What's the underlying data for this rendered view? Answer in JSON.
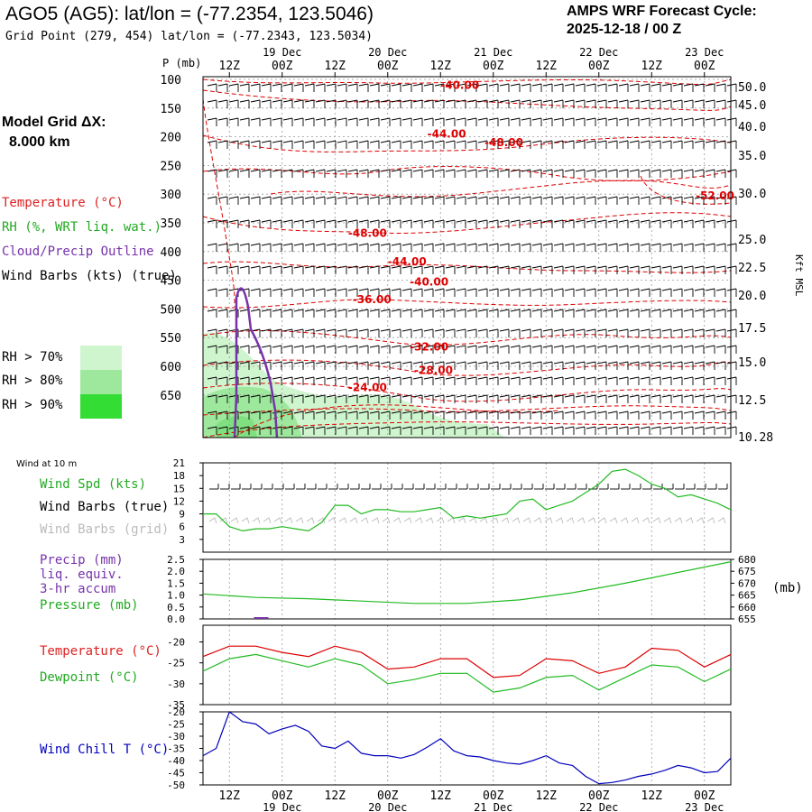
{
  "header": {
    "title": "AGO5 (AG5):  lat/lon = (-77.2354, 123.5046)",
    "subtitle": "Grid Point (279, 454) lat/lon = (-77.2343, 123.5034)",
    "forecast_label": "AMPS WRF Forecast Cycle:",
    "forecast_cycle": "2025-12-18 / 00  Z"
  },
  "sidebar": {
    "model_grid_label": "Model Grid ΔX:",
    "model_grid_value": "8.000 km",
    "legend": {
      "temperature": "Temperature (°C)",
      "rh": "RH (%, WRT liq. wat.)",
      "cloud": "Cloud/Precip Outline",
      "wind": "Wind Barbs (kts) (true)"
    },
    "rh_bins": [
      {
        "label": "RH > 70%",
        "color": "#cff5cf"
      },
      {
        "label": "RH > 80%",
        "color": "#9de89d"
      },
      {
        "label": "RH > 90%",
        "color": "#33dd33"
      }
    ]
  },
  "colors": {
    "temperature": "#dd0000",
    "rh_dewpoint": "#22bb22",
    "cloud": "#7733aa",
    "wind_barbs_grid": "#bbbbbb",
    "wind_chill": "#0000bb",
    "grid": "#999999"
  },
  "time_axis": {
    "top_labels": [
      "12Z",
      "00Z",
      "12Z",
      "00Z",
      "12Z",
      "00Z",
      "12Z",
      "00Z",
      "12Z",
      "00Z"
    ],
    "date_labels": [
      "19 Dec",
      "20 Dec",
      "21 Dec",
      "22 Dec",
      "23 Dec"
    ],
    "bottom_labels": [
      "12Z",
      "00Z",
      "12Z",
      "00Z",
      "12Z",
      "00Z",
      "12Z",
      "00Z",
      "12Z",
      "00Z"
    ],
    "bottom_dates": [
      "19 Dec",
      "20 Dec",
      "21 Dec",
      "22 Dec",
      "23 Dec"
    ]
  },
  "chart_data": [
    {
      "type": "heatmap",
      "title": "Vertical profile: temperature, RH, cloud outline, wind barbs",
      "ylabel": "P (mb)",
      "y_ticks": [
        "100",
        "150",
        "200",
        "250",
        "300",
        "350",
        "400",
        "450",
        "500",
        "550",
        "600",
        "650"
      ],
      "y2label": "Kft MSL",
      "y2_ticks": [
        "50.0",
        "45.0",
        "40.0",
        "35.0",
        "30.0",
        "25.0",
        "22.5",
        "20.0",
        "17.5",
        "15.0",
        "12.5",
        "10.28"
      ],
      "x_range_hours": [
        0,
        120
      ],
      "temperature_labels": [
        {
          "text": "-40.00",
          "hour": 54,
          "p": 110
        },
        {
          "text": "-44.00",
          "hour": 51,
          "p": 195
        },
        {
          "text": "-48.00",
          "hour": 64,
          "p": 210
        },
        {
          "text": "-52.00",
          "hour": 112,
          "p": 303
        },
        {
          "text": "-48.00",
          "hour": 33,
          "p": 368
        },
        {
          "text": "-44.00",
          "hour": 42,
          "p": 418
        },
        {
          "text": "-40.00",
          "hour": 47,
          "p": 453
        },
        {
          "text": "-36.00",
          "hour": 34,
          "p": 484
        },
        {
          "text": "-32.00",
          "hour": 47,
          "p": 566
        },
        {
          "text": "-28.00",
          "hour": 48,
          "p": 607
        },
        {
          "text": "-24.00",
          "hour": 33,
          "p": 637
        }
      ]
    },
    {
      "type": "line",
      "title": "Wind at 10 m",
      "legend": [
        "Wind Spd (kts)",
        "Wind Barbs (true)",
        "Wind Barbs (grid)"
      ],
      "y_ticks": [
        "3",
        "6",
        "9",
        "12",
        "15",
        "18",
        "21"
      ],
      "ylim": [
        0,
        21
      ],
      "x_hours": [
        0,
        3,
        6,
        9,
        12,
        15,
        18,
        21,
        24,
        27,
        30,
        33,
        36,
        39,
        42,
        45,
        48,
        51,
        54,
        57,
        60,
        63,
        66,
        69,
        72,
        75,
        78,
        81,
        84,
        87,
        90,
        93,
        96,
        99,
        102,
        105,
        108,
        111,
        114,
        117,
        120
      ],
      "series": [
        {
          "name": "Wind Spd (kts)",
          "values": [
            9,
            9,
            6,
            5,
            5.5,
            5.5,
            6,
            5.5,
            5,
            7,
            11,
            11,
            9,
            10,
            10,
            9.5,
            9.5,
            10,
            10.5,
            8,
            8.5,
            8,
            8.5,
            9,
            12,
            12.5,
            10,
            11,
            12,
            14,
            16,
            19,
            19.5,
            18,
            16,
            15,
            13,
            13.5,
            12.5,
            11.5,
            10
          ]
        }
      ]
    },
    {
      "type": "line",
      "title": "Precip and pressure",
      "legend": [
        "Precip (mm) liq. equiv. 3-hr accum",
        "Pressure (mb)"
      ],
      "y_ticks": [
        "0.0",
        "0.5",
        "1.0",
        "1.5",
        "2.0",
        "2.5"
      ],
      "y2_ticks": [
        "655",
        "660",
        "665",
        "670",
        "675",
        "680"
      ],
      "y2label": "(mb)",
      "x_hours": [
        0,
        12,
        24,
        36,
        48,
        60,
        72,
        84,
        96,
        108,
        120
      ],
      "series": [
        {
          "name": "Pressure (mb)",
          "values": [
            665.5,
            664,
            663.5,
            662.5,
            661.5,
            661.5,
            663,
            666,
            670,
            674.5,
            679
          ]
        },
        {
          "name": "Precip (mm)",
          "values": [
            0,
            0.05,
            0,
            0,
            0,
            0,
            0,
            0,
            0,
            0,
            0
          ]
        }
      ],
      "precip_legend_lines": [
        "Precip (mm)",
        "liq. equiv.",
        "3-hr accum"
      ]
    },
    {
      "type": "line",
      "title": "Temperature and Dewpoint",
      "legend": [
        "Temperature (°C)",
        "Dewpoint (°C)"
      ],
      "y_ticks": [
        "-20",
        "-25",
        "-30",
        "-35"
      ],
      "ylim": [
        -35,
        -16
      ],
      "x_hours": [
        0,
        6,
        12,
        18,
        24,
        30,
        36,
        42,
        48,
        54,
        60,
        66,
        72,
        78,
        84,
        90,
        96,
        102,
        108,
        114,
        120
      ],
      "series": [
        {
          "name": "Temperature (°C)",
          "values": [
            -23.5,
            -21,
            -21,
            -22.5,
            -23.5,
            -21,
            -22.5,
            -26.5,
            -26,
            -24,
            -24,
            -28.5,
            -28,
            -24,
            -24.5,
            -27.5,
            -26,
            -21.5,
            -22,
            -26,
            -23
          ]
        },
        {
          "name": "Dewpoint (°C)",
          "values": [
            -27,
            -24,
            -23,
            -24.5,
            -26,
            -24,
            -25.5,
            -30,
            -29,
            -27.5,
            -27.5,
            -32,
            -31,
            -28.5,
            -28,
            -31.5,
            -28.5,
            -25.5,
            -26,
            -29.5,
            -26.5
          ]
        }
      ]
    },
    {
      "type": "line",
      "title": "Wind Chill",
      "legend": [
        "Wind Chill T (°C)"
      ],
      "y_ticks": [
        "-20",
        "-25",
        "-30",
        "-35",
        "-40",
        "-45",
        "-50"
      ],
      "ylim": [
        -50,
        -20
      ],
      "x_hours": [
        0,
        3,
        6,
        9,
        12,
        15,
        18,
        21,
        24,
        27,
        30,
        33,
        36,
        39,
        42,
        45,
        48,
        51,
        54,
        57,
        60,
        63,
        66,
        69,
        72,
        75,
        78,
        81,
        84,
        87,
        90,
        93,
        96,
        99,
        102,
        105,
        108,
        111,
        114,
        117,
        120
      ],
      "series": [
        {
          "name": "Wind Chill T (°C)",
          "values": [
            -38,
            -35,
            -20,
            -24,
            -25,
            -29,
            -27,
            -25.5,
            -28,
            -34,
            -35,
            -32,
            -37,
            -38,
            -38,
            -39,
            -37.5,
            -34.5,
            -31,
            -36,
            -38,
            -38.5,
            -40,
            -41,
            -41.5,
            -40,
            -38,
            -41,
            -42,
            -46.5,
            -49.5,
            -49,
            -48,
            -46.5,
            -45.5,
            -44,
            -42,
            -43,
            -45,
            -44.5,
            -39
          ]
        }
      ]
    }
  ]
}
